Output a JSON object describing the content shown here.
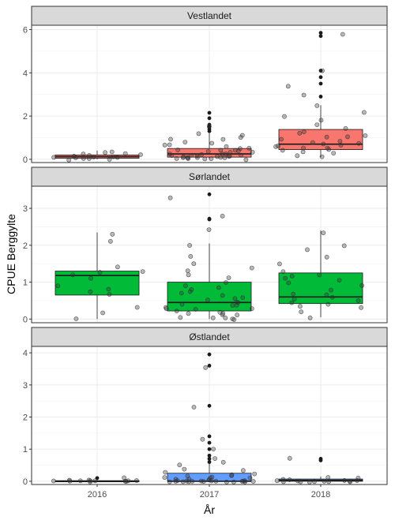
{
  "chart_data": {
    "type": "boxplot",
    "xlabel": "År",
    "ylabel": "CPUE Berggylte",
    "categories": [
      "2016",
      "2017",
      "2018"
    ],
    "grid": true,
    "legend": "none",
    "colors": {
      "Vestlandet": "#F8766D",
      "Sørlandet": "#00BA38",
      "Østlandet": "#619CFF",
      "strip_fill": "#d9d9d9",
      "grid": "#ebebeb",
      "point": "#333333"
    },
    "panels": [
      {
        "name": "Vestlandet",
        "ylim": [
          -0.15,
          6.2
        ],
        "yticks": [
          0,
          2,
          4,
          6
        ],
        "boxes": [
          {
            "category": "2016",
            "whisker_low": 0.0,
            "q1": 0.05,
            "median": 0.12,
            "q3": 0.2,
            "whisker_high": 0.4
          },
          {
            "category": "2017",
            "whisker_low": 0.0,
            "q1": 0.1,
            "median": 0.25,
            "q3": 0.5,
            "whisker_high": 1.2
          },
          {
            "category": "2018",
            "whisker_low": 0.1,
            "q1": 0.45,
            "median": 0.7,
            "q3": 1.38,
            "whisker_high": 2.5
          }
        ],
        "outliers": [
          {
            "category": "2017",
            "values": [
              1.3,
              1.4,
              1.5,
              1.6,
              1.9,
              2.15
            ]
          },
          {
            "category": "2018",
            "values": [
              2.9,
              3.5,
              3.8,
              4.1,
              5.7,
              5.85
            ]
          }
        ],
        "points": [
          {
            "category": "2016",
            "values": [
              0.0,
              0.02,
              0.05,
              0.05,
              0.08,
              0.1,
              0.12,
              0.15,
              0.18,
              0.2,
              0.22,
              0.25,
              0.3,
              0.35,
              0.0,
              0.03
            ]
          },
          {
            "category": "2017",
            "values": [
              0.0,
              0.0,
              0.02,
              0.05,
              0.05,
              0.08,
              0.1,
              0.1,
              0.12,
              0.15,
              0.15,
              0.2,
              0.2,
              0.22,
              0.25,
              0.28,
              0.3,
              0.3,
              0.35,
              0.4,
              0.45,
              0.5,
              0.55,
              0.6,
              0.7,
              0.8,
              0.9,
              1.0,
              1.1,
              1.2,
              1.5,
              0.05,
              0.12,
              0.18,
              0.25,
              0.33,
              0.42,
              0.65,
              0.75,
              0.95,
              0.02,
              0.07,
              0.14
            ]
          },
          {
            "category": "2018",
            "values": [
              0.1,
              0.2,
              0.3,
              0.4,
              0.45,
              0.5,
              0.55,
              0.6,
              0.65,
              0.7,
              0.75,
              0.8,
              0.9,
              1.0,
              1.1,
              1.2,
              1.3,
              1.4,
              1.6,
              1.8,
              2.0,
              2.2,
              2.5,
              3.0,
              3.4,
              4.1,
              5.8,
              0.35,
              0.62,
              0.85,
              1.05
            ]
          }
        ]
      },
      {
        "name": "Sørlandet",
        "ylim": [
          -0.1,
          3.6
        ],
        "yticks": [
          0,
          1,
          2,
          3
        ],
        "boxes": [
          {
            "category": "2016",
            "whisker_low": 0.0,
            "q1": 0.65,
            "median": 1.18,
            "q3": 1.3,
            "whisker_high": 2.35
          },
          {
            "category": "2017",
            "whisker_low": 0.0,
            "q1": 0.22,
            "median": 0.45,
            "q3": 1.0,
            "whisker_high": 2.05
          },
          {
            "category": "2018",
            "whisker_low": 0.05,
            "q1": 0.42,
            "median": 0.6,
            "q3": 1.25,
            "whisker_high": 2.4
          }
        ],
        "outliers": [
          {
            "category": "2017",
            "values": [
              2.7,
              2.72,
              3.38
            ]
          }
        ],
        "points": [
          {
            "category": "2016",
            "values": [
              0.0,
              0.15,
              0.3,
              0.65,
              0.8,
              0.9,
              1.1,
              1.2,
              1.25,
              1.3,
              1.4,
              2.1,
              2.3,
              0.75
            ]
          },
          {
            "category": "2017",
            "values": [
              0.0,
              0.0,
              0.02,
              0.05,
              0.1,
              0.1,
              0.15,
              0.2,
              0.2,
              0.25,
              0.3,
              0.3,
              0.35,
              0.4,
              0.45,
              0.45,
              0.5,
              0.55,
              0.6,
              0.7,
              0.8,
              0.9,
              1.0,
              1.1,
              1.2,
              1.3,
              1.5,
              1.7,
              2.0,
              2.4,
              2.8,
              3.3,
              0.05,
              0.15,
              0.28,
              0.38,
              0.62,
              0.75,
              0.85,
              1.4
            ]
          },
          {
            "category": "2018",
            "values": [
              0.05,
              0.2,
              0.3,
              0.4,
              0.45,
              0.5,
              0.55,
              0.6,
              0.7,
              0.8,
              0.9,
              1.0,
              1.1,
              1.2,
              1.3,
              1.5,
              1.7,
              1.9,
              2.0,
              2.35,
              0.35,
              0.65,
              1.05,
              1.15
            ]
          }
        ]
      },
      {
        "name": "Østlandet",
        "ylim": [
          -0.1,
          4.2
        ],
        "yticks": [
          0,
          1,
          2,
          3,
          4
        ],
        "boxes": [
          {
            "category": "2016",
            "whisker_low": 0.0,
            "q1": 0.0,
            "median": 0.0,
            "q3": 0.02,
            "whisker_high": 0.05
          },
          {
            "category": "2017",
            "whisker_low": 0.0,
            "q1": 0.0,
            "median": 0.0,
            "q3": 0.25,
            "whisker_high": 0.55
          },
          {
            "category": "2018",
            "whisker_low": 0.0,
            "q1": 0.0,
            "median": 0.03,
            "q3": 0.07,
            "whisker_high": 0.15
          }
        ],
        "outliers": [
          {
            "category": "2016",
            "values": [
              0.1
            ]
          },
          {
            "category": "2017",
            "values": [
              0.6,
              0.7,
              0.8,
              1.0,
              1.2,
              1.4,
              2.35,
              3.6,
              3.95
            ]
          },
          {
            "category": "2018",
            "values": [
              0.65,
              0.7
            ]
          }
        ],
        "points": [
          {
            "category": "2016",
            "values": [
              0.0,
              0.0,
              0.0,
              0.0,
              0.0,
              0.0,
              0.0,
              0.0,
              0.0,
              0.0,
              0.02,
              0.05,
              0.1
            ]
          },
          {
            "category": "2017",
            "values": [
              0.0,
              0.0,
              0.0,
              0.0,
              0.0,
              0.0,
              0.0,
              0.0,
              0.0,
              0.0,
              0.0,
              0.0,
              0.0,
              0.0,
              0.0,
              0.02,
              0.05,
              0.05,
              0.1,
              0.1,
              0.15,
              0.2,
              0.2,
              0.25,
              0.3,
              0.35,
              0.4,
              0.5,
              0.6,
              0.7,
              1.0,
              1.3,
              2.3,
              3.55,
              0.0,
              0.0,
              0.0,
              0.08,
              0.12,
              0.18
            ]
          },
          {
            "category": "2018",
            "values": [
              0.0,
              0.0,
              0.0,
              0.0,
              0.0,
              0.0,
              0.0,
              0.0,
              0.0,
              0.02,
              0.05,
              0.08,
              0.1,
              0.12,
              0.7,
              0.0,
              0.03
            ]
          }
        ]
      }
    ]
  }
}
